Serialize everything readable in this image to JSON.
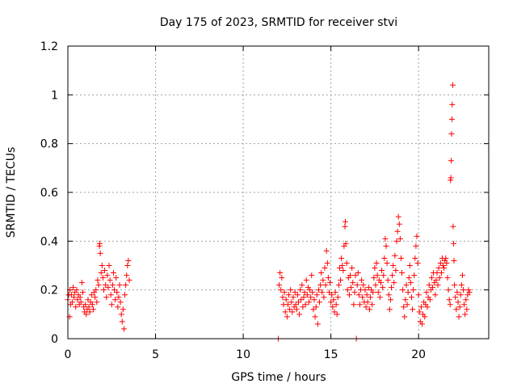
{
  "chart_data": {
    "type": "scatter",
    "title": "Day 175 of 2023, SRMTID for receiver stvi",
    "xlabel": "GPS time / hours",
    "ylabel": "SRMTID / TECUs",
    "xlim": [
      0,
      24
    ],
    "ylim": [
      0,
      1.2
    ],
    "x_ticks": [
      0,
      5,
      10,
      15,
      20
    ],
    "x_tick_labels": [
      "0",
      "5",
      "10",
      "15",
      "20"
    ],
    "y_ticks": [
      0,
      0.2,
      0.4,
      0.6,
      0.8,
      1,
      1.2
    ],
    "y_tick_labels": [
      "0",
      "0.2",
      "0.4",
      "0.6",
      "0.8",
      "1",
      "1.2"
    ],
    "grid": true,
    "marker": "+",
    "point_color": "#ff0000",
    "series": [
      {
        "name": "SRMTID",
        "points": [
          [
            0.0,
            0.16
          ],
          [
            0.05,
            0.18
          ],
          [
            0.1,
            0.09
          ],
          [
            0.12,
            0.2
          ],
          [
            0.15,
            0.14
          ],
          [
            0.2,
            0.18
          ],
          [
            0.25,
            0.15
          ],
          [
            0.3,
            0.21
          ],
          [
            0.35,
            0.17
          ],
          [
            0.4,
            0.19
          ],
          [
            0.45,
            0.13
          ],
          [
            0.5,
            0.2
          ],
          [
            0.55,
            0.16
          ],
          [
            0.6,
            0.18
          ],
          [
            0.65,
            0.14
          ],
          [
            0.7,
            0.17
          ],
          [
            0.75,
            0.15
          ],
          [
            0.8,
            0.23
          ],
          [
            0.85,
            0.19
          ],
          [
            0.9,
            0.13
          ],
          [
            0.95,
            0.11
          ],
          [
            1.0,
            0.14
          ],
          [
            1.05,
            0.1
          ],
          [
            1.1,
            0.12
          ],
          [
            1.15,
            0.16
          ],
          [
            1.2,
            0.13
          ],
          [
            1.25,
            0.11
          ],
          [
            1.3,
            0.15
          ],
          [
            1.35,
            0.18
          ],
          [
            1.4,
            0.14
          ],
          [
            1.45,
            0.12
          ],
          [
            1.5,
            0.19
          ],
          [
            1.55,
            0.17
          ],
          [
            1.6,
            0.2
          ],
          [
            1.65,
            0.15
          ],
          [
            1.7,
            0.24
          ],
          [
            1.75,
            0.22
          ],
          [
            1.8,
            0.38
          ],
          [
            1.82,
            0.39
          ],
          [
            1.85,
            0.35
          ],
          [
            1.9,
            0.27
          ],
          [
            1.95,
            0.3
          ],
          [
            2.0,
            0.25
          ],
          [
            2.05,
            0.2
          ],
          [
            2.1,
            0.28
          ],
          [
            2.15,
            0.22
          ],
          [
            2.2,
            0.17
          ],
          [
            2.25,
            0.26
          ],
          [
            2.3,
            0.21
          ],
          [
            2.35,
            0.3
          ],
          [
            2.4,
            0.24
          ],
          [
            2.45,
            0.18
          ],
          [
            2.5,
            0.14
          ],
          [
            2.55,
            0.22
          ],
          [
            2.6,
            0.27
          ],
          [
            2.65,
            0.2
          ],
          [
            2.7,
            0.16
          ],
          [
            2.75,
            0.25
          ],
          [
            2.8,
            0.19
          ],
          [
            2.85,
            0.13
          ],
          [
            2.9,
            0.17
          ],
          [
            2.95,
            0.22
          ],
          [
            3.0,
            0.15
          ],
          [
            3.05,
            0.1
          ],
          [
            3.1,
            0.07
          ],
          [
            3.15,
            0.12
          ],
          [
            3.2,
            0.04
          ],
          [
            3.25,
            0.18
          ],
          [
            3.3,
            0.22
          ],
          [
            3.35,
            0.26
          ],
          [
            3.4,
            0.3
          ],
          [
            3.45,
            0.32
          ],
          [
            3.5,
            0.24
          ],
          [
            12.0,
            0.0
          ],
          [
            12.05,
            0.22
          ],
          [
            12.1,
            0.27
          ],
          [
            12.15,
            0.2
          ],
          [
            12.2,
            0.25
          ],
          [
            12.25,
            0.17
          ],
          [
            12.3,
            0.14
          ],
          [
            12.35,
            0.19
          ],
          [
            12.4,
            0.11
          ],
          [
            12.45,
            0.16
          ],
          [
            12.5,
            0.09
          ],
          [
            12.55,
            0.14
          ],
          [
            12.6,
            0.18
          ],
          [
            12.65,
            0.12
          ],
          [
            12.7,
            0.2
          ],
          [
            12.75,
            0.15
          ],
          [
            12.8,
            0.11
          ],
          [
            12.85,
            0.17
          ],
          [
            12.9,
            0.13
          ],
          [
            12.95,
            0.19
          ],
          [
            13.0,
            0.14
          ],
          [
            13.05,
            0.12
          ],
          [
            13.1,
            0.18
          ],
          [
            13.15,
            0.15
          ],
          [
            13.2,
            0.1
          ],
          [
            13.25,
            0.2
          ],
          [
            13.3,
            0.16
          ],
          [
            13.35,
            0.22
          ],
          [
            13.4,
            0.13
          ],
          [
            13.45,
            0.17
          ],
          [
            13.5,
            0.19
          ],
          [
            13.55,
            0.14
          ],
          [
            13.6,
            0.24
          ],
          [
            13.65,
            0.18
          ],
          [
            13.7,
            0.21
          ],
          [
            13.75,
            0.15
          ],
          [
            13.8,
            0.2
          ],
          [
            13.85,
            0.17
          ],
          [
            13.9,
            0.26
          ],
          [
            13.95,
            0.19
          ],
          [
            14.0,
            0.12
          ],
          [
            14.05,
            0.16
          ],
          [
            14.1,
            0.09
          ],
          [
            14.15,
            0.13
          ],
          [
            14.2,
            0.18
          ],
          [
            14.25,
            0.06
          ],
          [
            14.3,
            0.2
          ],
          [
            14.35,
            0.15
          ],
          [
            14.4,
            0.22
          ],
          [
            14.45,
            0.27
          ],
          [
            14.5,
            0.19
          ],
          [
            14.55,
            0.24
          ],
          [
            14.6,
            0.17
          ],
          [
            14.65,
            0.29
          ],
          [
            14.7,
            0.22
          ],
          [
            14.75,
            0.36
          ],
          [
            14.8,
            0.31
          ],
          [
            14.85,
            0.25
          ],
          [
            14.9,
            0.19
          ],
          [
            14.95,
            0.23
          ],
          [
            15.0,
            0.15
          ],
          [
            15.05,
            0.18
          ],
          [
            15.1,
            0.13
          ],
          [
            15.15,
            0.16
          ],
          [
            15.2,
            0.11
          ],
          [
            15.25,
            0.19
          ],
          [
            15.3,
            0.14
          ],
          [
            15.35,
            0.1
          ],
          [
            15.4,
            0.17
          ],
          [
            15.45,
            0.22
          ],
          [
            15.5,
            0.29
          ],
          [
            15.55,
            0.24
          ],
          [
            15.6,
            0.33
          ],
          [
            15.65,
            0.3
          ],
          [
            15.7,
            0.28
          ],
          [
            15.75,
            0.38
          ],
          [
            15.8,
            0.46
          ],
          [
            15.82,
            0.48
          ],
          [
            15.85,
            0.39
          ],
          [
            15.9,
            0.31
          ],
          [
            15.95,
            0.2
          ],
          [
            16.0,
            0.25
          ],
          [
            16.05,
            0.18
          ],
          [
            16.1,
            0.26
          ],
          [
            16.15,
            0.21
          ],
          [
            16.2,
            0.29
          ],
          [
            16.25,
            0.23
          ],
          [
            16.3,
            0.14
          ],
          [
            16.35,
            0.19
          ],
          [
            16.4,
            0.26
          ],
          [
            16.45,
            0.0
          ],
          [
            16.5,
            0.22
          ],
          [
            16.55,
            0.27
          ],
          [
            16.6,
            0.18
          ],
          [
            16.65,
            0.14
          ],
          [
            16.7,
            0.2
          ],
          [
            16.75,
            0.24
          ],
          [
            16.8,
            0.17
          ],
          [
            16.85,
            0.22
          ],
          [
            16.9,
            0.15
          ],
          [
            16.95,
            0.2
          ],
          [
            17.0,
            0.13
          ],
          [
            17.05,
            0.18
          ],
          [
            17.1,
            0.15
          ],
          [
            17.15,
            0.21
          ],
          [
            17.2,
            0.12
          ],
          [
            17.25,
            0.17
          ],
          [
            17.3,
            0.2
          ],
          [
            17.35,
            0.14
          ],
          [
            17.4,
            0.19
          ],
          [
            17.45,
            0.25
          ],
          [
            17.5,
            0.29
          ],
          [
            17.55,
            0.22
          ],
          [
            17.6,
            0.31
          ],
          [
            17.65,
            0.26
          ],
          [
            17.7,
            0.19
          ],
          [
            17.75,
            0.24
          ],
          [
            17.8,
            0.17
          ],
          [
            17.85,
            0.23
          ],
          [
            17.9,
            0.28
          ],
          [
            17.95,
            0.21
          ],
          [
            18.0,
            0.26
          ],
          [
            18.05,
            0.33
          ],
          [
            18.1,
            0.41
          ],
          [
            18.15,
            0.38
          ],
          [
            18.2,
            0.31
          ],
          [
            18.25,
            0.24
          ],
          [
            18.3,
            0.18
          ],
          [
            18.35,
            0.12
          ],
          [
            18.4,
            0.16
          ],
          [
            18.45,
            0.21
          ],
          [
            18.5,
            0.26
          ],
          [
            18.55,
            0.3
          ],
          [
            18.6,
            0.23
          ],
          [
            18.65,
            0.34
          ],
          [
            18.7,
            0.28
          ],
          [
            18.75,
            0.4
          ],
          [
            18.8,
            0.44
          ],
          [
            18.85,
            0.5
          ],
          [
            18.9,
            0.47
          ],
          [
            18.95,
            0.41
          ],
          [
            19.0,
            0.33
          ],
          [
            19.05,
            0.27
          ],
          [
            19.1,
            0.2
          ],
          [
            19.15,
            0.13
          ],
          [
            19.2,
            0.09
          ],
          [
            19.25,
            0.16
          ],
          [
            19.3,
            0.22
          ],
          [
            19.35,
            0.14
          ],
          [
            19.4,
            0.19
          ],
          [
            19.45,
            0.25
          ],
          [
            19.5,
            0.3
          ],
          [
            19.55,
            0.23
          ],
          [
            19.6,
            0.17
          ],
          [
            19.65,
            0.12
          ],
          [
            19.7,
            0.2
          ],
          [
            19.75,
            0.26
          ],
          [
            19.8,
            0.33
          ],
          [
            19.85,
            0.38
          ],
          [
            19.9,
            0.42
          ],
          [
            19.95,
            0.31
          ],
          [
            20.0,
            0.18
          ],
          [
            20.05,
            0.11
          ],
          [
            20.1,
            0.07
          ],
          [
            20.15,
            0.13
          ],
          [
            20.2,
            0.06
          ],
          [
            20.25,
            0.1
          ],
          [
            20.3,
            0.15
          ],
          [
            20.35,
            0.09
          ],
          [
            20.4,
            0.14
          ],
          [
            20.45,
            0.19
          ],
          [
            20.5,
            0.13
          ],
          [
            20.55,
            0.17
          ],
          [
            20.6,
            0.22
          ],
          [
            20.65,
            0.16
          ],
          [
            20.7,
            0.2
          ],
          [
            20.75,
            0.25
          ],
          [
            20.8,
            0.21
          ],
          [
            20.85,
            0.27
          ],
          [
            20.9,
            0.23
          ],
          [
            20.95,
            0.18
          ],
          [
            21.0,
            0.24
          ],
          [
            21.05,
            0.27
          ],
          [
            21.1,
            0.22
          ],
          [
            21.15,
            0.29
          ],
          [
            21.2,
            0.25
          ],
          [
            21.25,
            0.31
          ],
          [
            21.3,
            0.27
          ],
          [
            21.35,
            0.33
          ],
          [
            21.4,
            0.3
          ],
          [
            21.45,
            0.29
          ],
          [
            21.5,
            0.32
          ],
          [
            21.55,
            0.33
          ],
          [
            21.6,
            0.31
          ],
          [
            21.65,
            0.25
          ],
          [
            21.7,
            0.2
          ],
          [
            21.75,
            0.16
          ],
          [
            21.8,
            0.14
          ],
          [
            21.82,
            0.65
          ],
          [
            21.84,
            0.66
          ],
          [
            21.86,
            0.73
          ],
          [
            21.88,
            0.84
          ],
          [
            21.9,
            0.9
          ],
          [
            21.92,
            0.96
          ],
          [
            21.95,
            1.04
          ],
          [
            21.97,
            0.46
          ],
          [
            22.0,
            0.39
          ],
          [
            22.02,
            0.32
          ],
          [
            22.05,
            0.22
          ],
          [
            22.1,
            0.17
          ],
          [
            22.15,
            0.12
          ],
          [
            22.2,
            0.19
          ],
          [
            22.25,
            0.15
          ],
          [
            22.3,
            0.09
          ],
          [
            22.35,
            0.13
          ],
          [
            22.4,
            0.18
          ],
          [
            22.45,
            0.22
          ],
          [
            22.5,
            0.26
          ],
          [
            22.55,
            0.2
          ],
          [
            22.6,
            0.14
          ],
          [
            22.65,
            0.1
          ],
          [
            22.7,
            0.16
          ],
          [
            22.75,
            0.12
          ],
          [
            22.8,
            0.18
          ],
          [
            22.85,
            0.2
          ],
          [
            22.9,
            0.19
          ]
        ]
      }
    ]
  }
}
